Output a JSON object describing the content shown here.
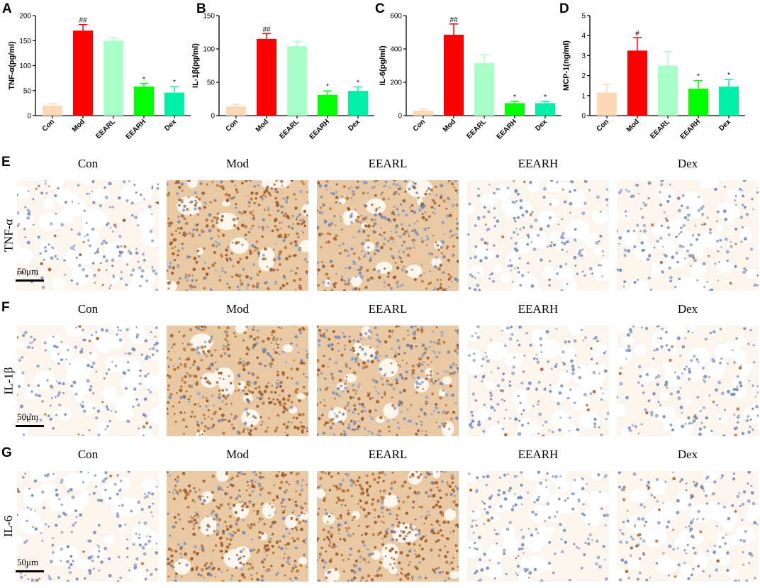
{
  "chart_data": [
    {
      "panel": "A",
      "type": "bar",
      "ylabel": "TNF-α(pg/ml)",
      "categories": [
        "Con",
        "Mod",
        "EEARL",
        "EEARH",
        "Dex"
      ],
      "values": [
        20,
        170,
        150,
        58,
        46
      ],
      "errors": [
        4,
        12,
        6,
        6,
        12
      ],
      "significance": [
        "",
        "##",
        "",
        "*",
        "*"
      ],
      "ylim": [
        0,
        200
      ],
      "yticks": [
        0,
        50,
        100,
        150,
        200
      ],
      "colors": [
        "#fcd9b6",
        "#ff0000",
        "#a8ffc8",
        "#00ff00",
        "#00f0a8"
      ]
    },
    {
      "panel": "B",
      "type": "bar",
      "ylabel": "IL-1β(pg/ml)",
      "categories": [
        "Con",
        "Mod",
        "EEARL",
        "EEARH",
        "Dex"
      ],
      "values": [
        14,
        115,
        104,
        31,
        37
      ],
      "errors": [
        3,
        8,
        7,
        6,
        6
      ],
      "significance": [
        "",
        "##",
        "",
        "*",
        "*"
      ],
      "ylim": [
        0,
        150
      ],
      "yticks": [
        0,
        50,
        100,
        150
      ],
      "colors": [
        "#fcd9b6",
        "#ff0000",
        "#a8ffc8",
        "#00ff00",
        "#00f0a8"
      ]
    },
    {
      "panel": "C",
      "type": "bar",
      "ylabel": "IL-6(pg/ml)",
      "categories": [
        "Con",
        "Mod",
        "EEARL",
        "EEARH",
        "Dex"
      ],
      "values": [
        30,
        485,
        315,
        75,
        75
      ],
      "errors": [
        10,
        65,
        50,
        10,
        10
      ],
      "significance": [
        "",
        "##",
        "",
        "*",
        "*"
      ],
      "ylim": [
        0,
        600
      ],
      "yticks": [
        0,
        200,
        400,
        600
      ],
      "colors": [
        "#fcd9b6",
        "#ff0000",
        "#a8ffc8",
        "#00ff00",
        "#00f0a8"
      ]
    },
    {
      "panel": "D",
      "type": "bar",
      "ylabel": "MCP-1(ng/ml)",
      "categories": [
        "Con",
        "Mod",
        "EEARL",
        "EEARH",
        "Dex"
      ],
      "values": [
        1.15,
        3.25,
        2.5,
        1.35,
        1.45
      ],
      "errors": [
        0.4,
        0.65,
        0.7,
        0.4,
        0.35
      ],
      "significance": [
        "",
        "#",
        "",
        "*",
        "*"
      ],
      "ylim": [
        0,
        5
      ],
      "yticks": [
        0,
        1,
        2,
        3,
        4,
        5
      ],
      "colors": [
        "#fcd9b6",
        "#ff0000",
        "#a8ffc8",
        "#00ff00",
        "#00f0a8"
      ]
    }
  ],
  "ihc": {
    "columns": [
      "Con",
      "Mod",
      "EEARL",
      "EEARH",
      "Dex"
    ],
    "scale_label": "50μm",
    "rows": [
      {
        "letter": "E",
        "label": "TNF-α",
        "stain": [
          0.08,
          0.7,
          0.5,
          0.06,
          0.05
        ]
      },
      {
        "letter": "F",
        "label": "IL-1β",
        "stain": [
          0.08,
          0.75,
          0.45,
          0.07,
          0.06
        ]
      },
      {
        "letter": "G",
        "label": "IL-6",
        "stain": [
          0.06,
          0.7,
          0.8,
          0.05,
          0.18
        ]
      }
    ]
  }
}
